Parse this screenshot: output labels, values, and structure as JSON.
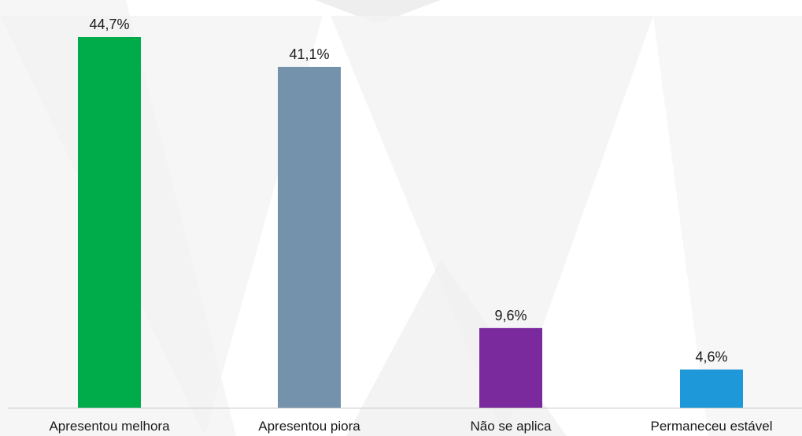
{
  "chart_data": {
    "type": "bar",
    "categories": [
      "Apresentou melhora",
      "Apresentou piora",
      "Não se aplica",
      "Permaneceu estável"
    ],
    "values": [
      44.7,
      41.1,
      9.6,
      4.6
    ],
    "value_labels": [
      "44,7%",
      "41,1%",
      "9,6%",
      "4,6%"
    ],
    "colors": [
      "#00ac4a",
      "#7592ad",
      "#7a2a9c",
      "#1e98d8"
    ],
    "ylim": [
      0,
      44.7
    ],
    "grid": false,
    "legend": "none"
  }
}
